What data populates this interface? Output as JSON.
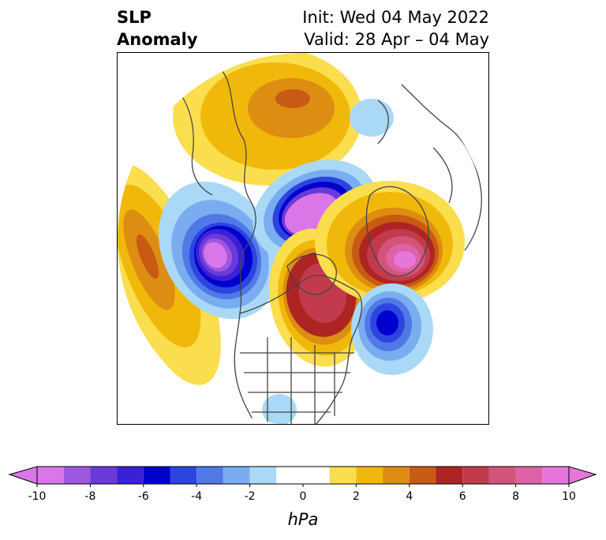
{
  "title": {
    "left_line1": "SLP",
    "left_line2": "Anomaly",
    "right_line1": "Init: Wed 04 May 2022",
    "right_line2": "Valid: 28 Apr – 04 May"
  },
  "colorbar": {
    "unit_label": "hPa",
    "ticks": [
      "-10",
      "-8",
      "-6",
      "-4",
      "-2",
      "0",
      "2",
      "4",
      "6",
      "8",
      "10"
    ],
    "tick_values": [
      -10,
      -8,
      -6,
      -4,
      -2,
      0,
      2,
      4,
      6,
      8,
      10
    ],
    "bins": [
      {
        "from": -10,
        "to": -9,
        "color": "#d977e8"
      },
      {
        "from": -9,
        "to": -8,
        "color": "#9d57e0"
      },
      {
        "from": -8,
        "to": -7,
        "color": "#6a3ad9"
      },
      {
        "from": -7,
        "to": -6,
        "color": "#3a20d6"
      },
      {
        "from": -6,
        "to": -5,
        "color": "#0000cd"
      },
      {
        "from": -5,
        "to": -4,
        "color": "#2c45e0"
      },
      {
        "from": -4,
        "to": -3,
        "color": "#5078e6"
      },
      {
        "from": -3,
        "to": -2,
        "color": "#79adf0"
      },
      {
        "from": -2,
        "to": -1,
        "color": "#a9d9f7"
      },
      {
        "from": -1,
        "to": 1,
        "color": "#ffffff"
      },
      {
        "from": 1,
        "to": 2,
        "color": "#fbde4e"
      },
      {
        "from": 2,
        "to": 3,
        "color": "#f1b80c"
      },
      {
        "from": 3,
        "to": 4,
        "color": "#dd8d12"
      },
      {
        "from": 4,
        "to": 5,
        "color": "#c85a14"
      },
      {
        "from": 5,
        "to": 6,
        "color": "#ad2424"
      },
      {
        "from": 6,
        "to": 7,
        "color": "#c23b4d"
      },
      {
        "from": 7,
        "to": 8,
        "color": "#d4537a"
      },
      {
        "from": 8,
        "to": 9,
        "color": "#dd62a6"
      },
      {
        "from": 9,
        "to": 10,
        "color": "#e676d9"
      }
    ],
    "extend_min_color": "#d977e8",
    "extend_max_color": "#e676d9"
  },
  "map": {
    "projection": "north polar stereographic",
    "region": "Northern Hemisphere, centered on North America",
    "anomaly_centers": [
      {
        "name": "negative-center-north-pacific",
        "sign": "negative",
        "peak_hpa": -10
      },
      {
        "name": "negative-center-arctic",
        "sign": "negative",
        "peak_hpa": -10
      },
      {
        "name": "negative-center-north-atlantic",
        "sign": "negative",
        "peak_hpa": -7
      },
      {
        "name": "positive-center-hudson-bay",
        "sign": "positive",
        "peak_hpa": 7
      },
      {
        "name": "positive-center-greenland",
        "sign": "positive",
        "peak_hpa": 9
      },
      {
        "name": "positive-center-west-pacific",
        "sign": "positive",
        "peak_hpa": 5
      },
      {
        "name": "positive-center-siberia",
        "sign": "positive",
        "peak_hpa": 5
      }
    ]
  }
}
